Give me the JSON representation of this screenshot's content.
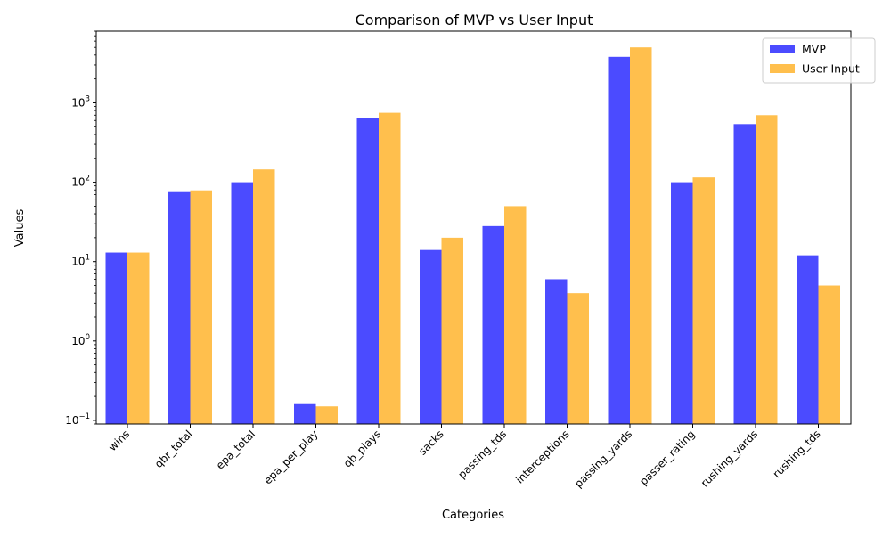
{
  "chart_data": {
    "type": "bar",
    "title": "Comparison of MVP vs User Input",
    "xlabel": "Categories",
    "ylabel": "Values",
    "yscale": "log",
    "ylim": [
      0.09,
      8000
    ],
    "yticks": [
      {
        "value": 0.1,
        "base": "10",
        "exp": "−1"
      },
      {
        "value": 1,
        "base": "10",
        "exp": "0"
      },
      {
        "value": 10,
        "base": "10",
        "exp": "1"
      },
      {
        "value": 100,
        "base": "10",
        "exp": "2"
      },
      {
        "value": 1000,
        "base": "10",
        "exp": "3"
      }
    ],
    "categories": [
      "wins",
      "qbr_total",
      "epa_total",
      "epa_per_play",
      "qb_plays",
      "sacks",
      "passing_tds",
      "interceptions",
      "passing_yards",
      "passer_rating",
      "rushing_yards",
      "rushing_tds"
    ],
    "series": [
      {
        "name": "MVP",
        "color": "#4b4bff",
        "values": [
          13,
          77,
          100,
          0.16,
          650,
          14,
          28,
          6,
          3800,
          100,
          540,
          12
        ]
      },
      {
        "name": "User Input",
        "color": "#ffbf4d",
        "values": [
          13,
          79,
          145,
          0.15,
          750,
          20,
          50,
          4,
          5000,
          115,
          700,
          5
        ]
      }
    ],
    "grid": false,
    "legend_position": "top-right"
  }
}
